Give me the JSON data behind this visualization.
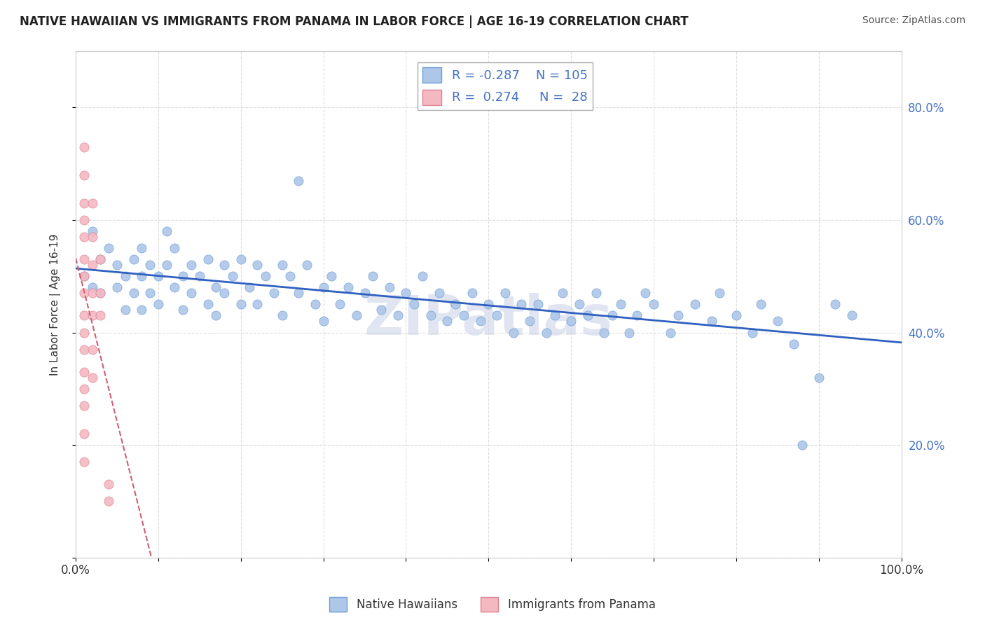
{
  "title": "NATIVE HAWAIIAN VS IMMIGRANTS FROM PANAMA IN LABOR FORCE | AGE 16-19 CORRELATION CHART",
  "source": "Source: ZipAtlas.com",
  "ylabel": "In Labor Force | Age 16-19",
  "xlim": [
    0.0,
    1.0
  ],
  "ylim": [
    0.0,
    0.9
  ],
  "x_ticks": [
    0.0,
    0.1,
    0.2,
    0.3,
    0.4,
    0.5,
    0.6,
    0.7,
    0.8,
    0.9,
    1.0
  ],
  "y_ticks": [
    0.0,
    0.2,
    0.4,
    0.6,
    0.8
  ],
  "legend_entry1": {
    "color": "#aec6e8",
    "R": "-0.287",
    "N": "105",
    "label": "Native Hawaiians"
  },
  "legend_entry2": {
    "color": "#f4b8c1",
    "R": "0.274",
    "N": "28",
    "label": "Immigrants from Panama"
  },
  "blue_color": "#aec6e8",
  "pink_color": "#f4b8c1",
  "blue_edge_color": "#6a9fd8",
  "pink_edge_color": "#e08090",
  "blue_line_color": "#3060c0",
  "pink_line_color": "#d06070",
  "blue_scatter": [
    [
      0.01,
      0.5
    ],
    [
      0.02,
      0.48
    ],
    [
      0.02,
      0.58
    ],
    [
      0.03,
      0.53
    ],
    [
      0.03,
      0.47
    ],
    [
      0.04,
      0.55
    ],
    [
      0.05,
      0.52
    ],
    [
      0.05,
      0.48
    ],
    [
      0.06,
      0.5
    ],
    [
      0.06,
      0.44
    ],
    [
      0.07,
      0.53
    ],
    [
      0.07,
      0.47
    ],
    [
      0.08,
      0.55
    ],
    [
      0.08,
      0.5
    ],
    [
      0.08,
      0.44
    ],
    [
      0.09,
      0.52
    ],
    [
      0.09,
      0.47
    ],
    [
      0.1,
      0.5
    ],
    [
      0.1,
      0.45
    ],
    [
      0.11,
      0.58
    ],
    [
      0.11,
      0.52
    ],
    [
      0.12,
      0.48
    ],
    [
      0.12,
      0.55
    ],
    [
      0.13,
      0.5
    ],
    [
      0.13,
      0.44
    ],
    [
      0.14,
      0.52
    ],
    [
      0.14,
      0.47
    ],
    [
      0.15,
      0.5
    ],
    [
      0.16,
      0.53
    ],
    [
      0.16,
      0.45
    ],
    [
      0.17,
      0.48
    ],
    [
      0.17,
      0.43
    ],
    [
      0.18,
      0.52
    ],
    [
      0.18,
      0.47
    ],
    [
      0.19,
      0.5
    ],
    [
      0.2,
      0.53
    ],
    [
      0.2,
      0.45
    ],
    [
      0.21,
      0.48
    ],
    [
      0.22,
      0.52
    ],
    [
      0.22,
      0.45
    ],
    [
      0.23,
      0.5
    ],
    [
      0.24,
      0.47
    ],
    [
      0.25,
      0.52
    ],
    [
      0.25,
      0.43
    ],
    [
      0.26,
      0.5
    ],
    [
      0.27,
      0.67
    ],
    [
      0.27,
      0.47
    ],
    [
      0.28,
      0.52
    ],
    [
      0.29,
      0.45
    ],
    [
      0.3,
      0.48
    ],
    [
      0.3,
      0.42
    ],
    [
      0.31,
      0.5
    ],
    [
      0.32,
      0.45
    ],
    [
      0.33,
      0.48
    ],
    [
      0.34,
      0.43
    ],
    [
      0.35,
      0.47
    ],
    [
      0.36,
      0.5
    ],
    [
      0.37,
      0.44
    ],
    [
      0.38,
      0.48
    ],
    [
      0.39,
      0.43
    ],
    [
      0.4,
      0.47
    ],
    [
      0.41,
      0.45
    ],
    [
      0.42,
      0.5
    ],
    [
      0.43,
      0.43
    ],
    [
      0.44,
      0.47
    ],
    [
      0.45,
      0.42
    ],
    [
      0.46,
      0.45
    ],
    [
      0.47,
      0.43
    ],
    [
      0.48,
      0.47
    ],
    [
      0.49,
      0.42
    ],
    [
      0.5,
      0.45
    ],
    [
      0.51,
      0.43
    ],
    [
      0.52,
      0.47
    ],
    [
      0.53,
      0.4
    ],
    [
      0.54,
      0.45
    ],
    [
      0.55,
      0.42
    ],
    [
      0.56,
      0.45
    ],
    [
      0.57,
      0.4
    ],
    [
      0.58,
      0.43
    ],
    [
      0.59,
      0.47
    ],
    [
      0.6,
      0.42
    ],
    [
      0.61,
      0.45
    ],
    [
      0.62,
      0.43
    ],
    [
      0.63,
      0.47
    ],
    [
      0.64,
      0.4
    ],
    [
      0.65,
      0.43
    ],
    [
      0.66,
      0.45
    ],
    [
      0.67,
      0.4
    ],
    [
      0.68,
      0.43
    ],
    [
      0.69,
      0.47
    ],
    [
      0.7,
      0.45
    ],
    [
      0.72,
      0.4
    ],
    [
      0.73,
      0.43
    ],
    [
      0.75,
      0.45
    ],
    [
      0.77,
      0.42
    ],
    [
      0.78,
      0.47
    ],
    [
      0.8,
      0.43
    ],
    [
      0.82,
      0.4
    ],
    [
      0.83,
      0.45
    ],
    [
      0.85,
      0.42
    ],
    [
      0.87,
      0.38
    ],
    [
      0.88,
      0.2
    ],
    [
      0.9,
      0.32
    ],
    [
      0.92,
      0.45
    ],
    [
      0.94,
      0.43
    ]
  ],
  "pink_scatter": [
    [
      0.01,
      0.73
    ],
    [
      0.01,
      0.68
    ],
    [
      0.01,
      0.63
    ],
    [
      0.01,
      0.6
    ],
    [
      0.01,
      0.57
    ],
    [
      0.01,
      0.53
    ],
    [
      0.01,
      0.5
    ],
    [
      0.01,
      0.47
    ],
    [
      0.01,
      0.43
    ],
    [
      0.01,
      0.4
    ],
    [
      0.01,
      0.37
    ],
    [
      0.01,
      0.33
    ],
    [
      0.01,
      0.3
    ],
    [
      0.01,
      0.27
    ],
    [
      0.01,
      0.22
    ],
    [
      0.01,
      0.17
    ],
    [
      0.02,
      0.63
    ],
    [
      0.02,
      0.57
    ],
    [
      0.02,
      0.52
    ],
    [
      0.02,
      0.47
    ],
    [
      0.02,
      0.43
    ],
    [
      0.02,
      0.37
    ],
    [
      0.02,
      0.32
    ],
    [
      0.03,
      0.53
    ],
    [
      0.03,
      0.47
    ],
    [
      0.03,
      0.43
    ],
    [
      0.04,
      0.13
    ],
    [
      0.04,
      0.1
    ]
  ],
  "watermark": "ZIPatlas",
  "watermark_color": "#ccd5e8",
  "background_color": "#ffffff",
  "grid_color": "#dddddd",
  "title_color": "#222222",
  "source_color": "#555555",
  "ylabel_color": "#333333",
  "tick_color_right": "#4472c4",
  "tick_color_bottom": "#333333"
}
